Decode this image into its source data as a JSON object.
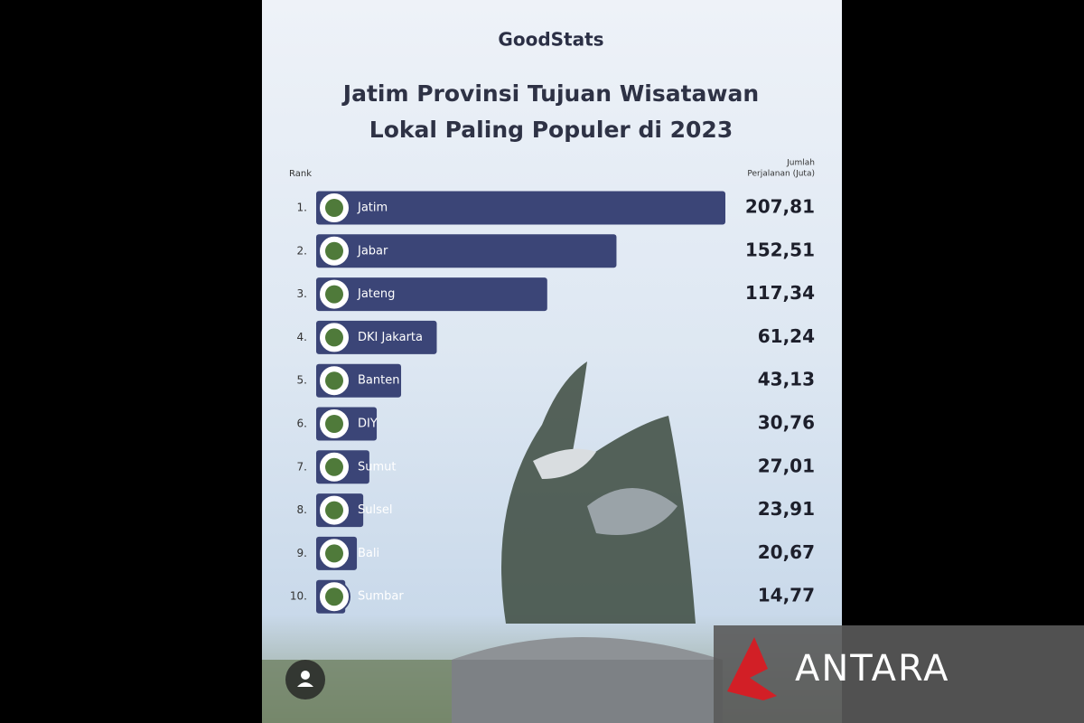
{
  "chart_data": {
    "type": "bar",
    "orientation": "horizontal",
    "logo": "GoodStats",
    "title": [
      "Jatim Provinsi Tujuan Wisatawan",
      "Lokal Paling Populer di 2023"
    ],
    "rank_header": "Rank",
    "value_header": [
      "Jumlah",
      "Perjalanan (Juta)"
    ],
    "ranks": [
      "1.",
      "2.",
      "3.",
      "4.",
      "5.",
      "6.",
      "7.",
      "8.",
      "9.",
      "10."
    ],
    "categories": [
      "Jatim",
      "Jabar",
      "Jateng",
      "DKI Jakarta",
      "Banten",
      "DIY",
      "Sumut",
      "Sulsel",
      "Bali",
      "Sumbar"
    ],
    "values": [
      207.81,
      152.51,
      117.34,
      61.24,
      43.13,
      30.76,
      27.01,
      23.91,
      20.67,
      14.77
    ],
    "value_labels": [
      "207,81",
      "152,51",
      "117,34",
      "61,24",
      "43,13",
      "30,76",
      "27,01",
      "23,91",
      "20,67",
      "14,77"
    ],
    "color": "#3b4577"
  },
  "watermark": "ANTARA"
}
